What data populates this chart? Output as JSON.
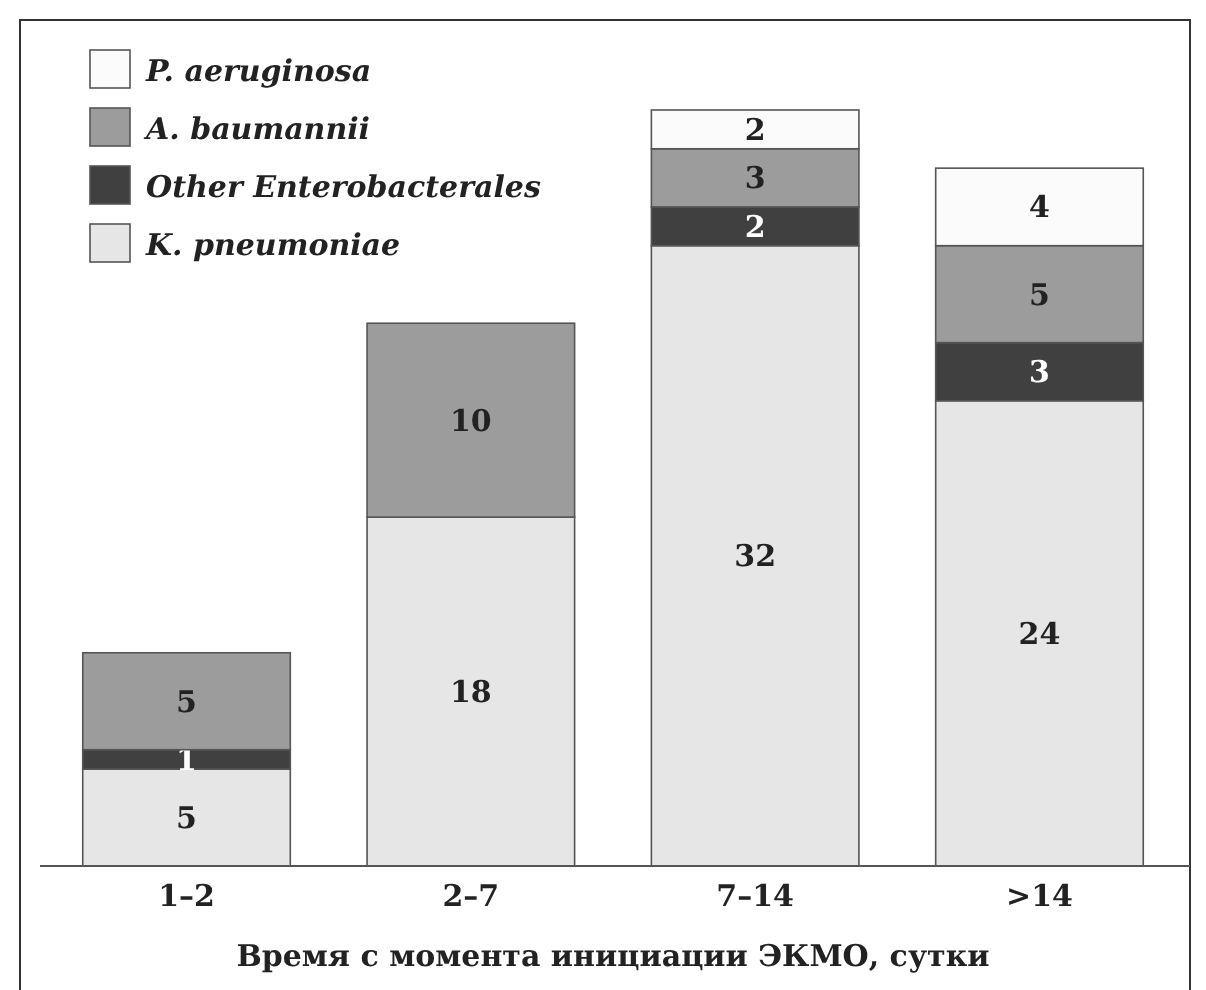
{
  "chart_data": {
    "type": "bar",
    "stacked": true,
    "xlabel": "Время с момента инициации ЭКМО, сутки",
    "categories": [
      "1–2",
      "2–7",
      "7–14",
      ">14"
    ],
    "series": [
      {
        "name": "K. pneumoniae",
        "color": "#e6e6e6",
        "values": [
          5,
          18,
          32,
          24
        ]
      },
      {
        "name": "Other Enterobacterales",
        "color": "#404040",
        "values": [
          1,
          null,
          2,
          3
        ]
      },
      {
        "name": "A. baumannii",
        "color": "#9c9c9c",
        "values": [
          5,
          10,
          3,
          5
        ]
      },
      {
        "name": "P. aeruginosa",
        "color": "#fbfbfb",
        "values": [
          null,
          null,
          2,
          4
        ]
      }
    ],
    "data_labels": true,
    "legend": "top left"
  }
}
